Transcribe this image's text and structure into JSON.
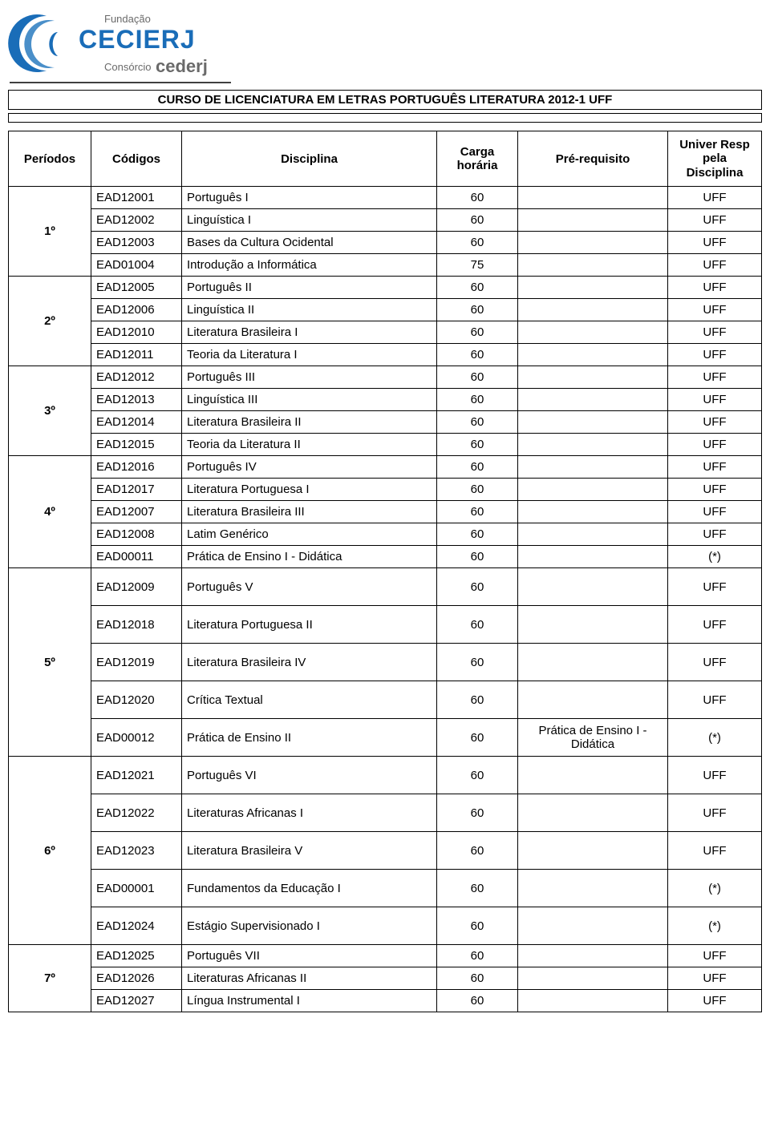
{
  "logo": {
    "fundacao": "Fundação",
    "cecierj": "CECIERJ",
    "consorcio": "Consórcio",
    "cederj": "cederj",
    "blue": "#1a6db8",
    "gray": "#6a6a6a"
  },
  "title": "CURSO DE LICENCIATURA EM LETRAS PORTUGUÊS LITERATURA  2012-1  UFF",
  "headers": {
    "periodos": "Períodos",
    "codigos": "Códigos",
    "disciplina": "Disciplina",
    "carga": "Carga horária",
    "prereq": "Pré-requisito",
    "univer": "Univer Resp pela Disciplina"
  },
  "periods": [
    {
      "label": "1º",
      "rows": [
        {
          "codigo": "EAD12001",
          "disciplina": "Português I",
          "carga": "60",
          "prereq": "",
          "univer": "UFF"
        },
        {
          "codigo": "EAD12002",
          "disciplina": "Linguística I",
          "carga": "60",
          "prereq": "",
          "univer": "UFF"
        },
        {
          "codigo": "EAD12003",
          "disciplina": "Bases da Cultura Ocidental",
          "carga": "60",
          "prereq": "",
          "univer": "UFF"
        },
        {
          "codigo": "EAD01004",
          "disciplina": "Introdução a Informática",
          "carga": "75",
          "prereq": "",
          "univer": "UFF"
        }
      ]
    },
    {
      "label": "2º",
      "rows": [
        {
          "codigo": "EAD12005",
          "disciplina": "Português II",
          "carga": "60",
          "prereq": "",
          "univer": "UFF"
        },
        {
          "codigo": "EAD12006",
          "disciplina": "Linguística II",
          "carga": "60",
          "prereq": "",
          "univer": "UFF"
        },
        {
          "codigo": "EAD12010",
          "disciplina": "Literatura Brasileira I",
          "carga": "60",
          "prereq": "",
          "univer": "UFF"
        },
        {
          "codigo": "EAD12011",
          "disciplina": "Teoria da Literatura I",
          "carga": "60",
          "prereq": "",
          "univer": "UFF"
        }
      ]
    },
    {
      "label": "3º",
      "rows": [
        {
          "codigo": "EAD12012",
          "disciplina": "Português III",
          "carga": "60",
          "prereq": "",
          "univer": "UFF"
        },
        {
          "codigo": "EAD12013",
          "disciplina": "Linguística III",
          "carga": "60",
          "prereq": "",
          "univer": "UFF"
        },
        {
          "codigo": "EAD12014",
          "disciplina": "Literatura Brasileira II",
          "carga": "60",
          "prereq": "",
          "univer": "UFF"
        },
        {
          "codigo": "EAD12015",
          "disciplina": "Teoria da Literatura II",
          "carga": "60",
          "prereq": "",
          "univer": "UFF"
        }
      ]
    },
    {
      "label": "4º",
      "rows": [
        {
          "codigo": "EAD12016",
          "disciplina": "Português IV",
          "carga": "60",
          "prereq": "",
          "univer": "UFF"
        },
        {
          "codigo": "EAD12017",
          "disciplina": "Literatura Portuguesa I",
          "carga": "60",
          "prereq": "",
          "univer": "UFF"
        },
        {
          "codigo": "EAD12007",
          "disciplina": "Literatura Brasileira III",
          "carga": "60",
          "prereq": "",
          "univer": "UFF"
        },
        {
          "codigo": "EAD12008",
          "disciplina": "Latim Genérico",
          "carga": "60",
          "prereq": "",
          "univer": "UFF"
        },
        {
          "codigo": "EAD00011",
          "disciplina": "Prática de Ensino I - Didática",
          "carga": "60",
          "prereq": "",
          "univer": "(*)"
        }
      ]
    },
    {
      "label": "5º",
      "tall": true,
      "rows": [
        {
          "codigo": "EAD12009",
          "disciplina": "Português V",
          "carga": "60",
          "prereq": "",
          "univer": "UFF"
        },
        {
          "codigo": "EAD12018",
          "disciplina": "Literatura Portuguesa II",
          "carga": "60",
          "prereq": "",
          "univer": "UFF"
        },
        {
          "codigo": "EAD12019",
          "disciplina": "Literatura Brasileira IV",
          "carga": "60",
          "prereq": "",
          "univer": "UFF"
        },
        {
          "codigo": "EAD12020",
          "disciplina": "Crítica Textual",
          "carga": "60",
          "prereq": "",
          "univer": "UFF"
        },
        {
          "codigo": "EAD00012",
          "disciplina": "Prática de Ensino II",
          "carga": "60",
          "prereq": "Prática de Ensino I - Didática",
          "univer": "(*)"
        }
      ]
    },
    {
      "label": "6º",
      "tall": true,
      "rows": [
        {
          "codigo": "EAD12021",
          "disciplina": "Português VI",
          "carga": "60",
          "prereq": "",
          "univer": "UFF"
        },
        {
          "codigo": "EAD12022",
          "disciplina": "Literaturas Africanas I",
          "carga": "60",
          "prereq": "",
          "univer": "UFF"
        },
        {
          "codigo": "EAD12023",
          "disciplina": "Literatura Brasileira V",
          "carga": "60",
          "prereq": "",
          "univer": "UFF"
        },
        {
          "codigo": "EAD00001",
          "disciplina": "Fundamentos da Educação I",
          "carga": "60",
          "prereq": "",
          "univer": "(*)"
        },
        {
          "codigo": "EAD12024",
          "disciplina": "Estágio Supervisionado I",
          "carga": "60",
          "prereq": "",
          "univer": "(*)"
        }
      ]
    },
    {
      "label": "7º",
      "rows": [
        {
          "codigo": "EAD12025",
          "disciplina": "Português VII",
          "carga": "60",
          "prereq": "",
          "univer": "UFF"
        },
        {
          "codigo": "EAD12026",
          "disciplina": "Literaturas Africanas II",
          "carga": "60",
          "prereq": "",
          "univer": "UFF"
        },
        {
          "codigo": "EAD12027",
          "disciplina": "Língua Instrumental I",
          "carga": "60",
          "prereq": "",
          "univer": "UFF"
        }
      ]
    }
  ],
  "styling": {
    "border_color": "#000000",
    "background_color": "#ffffff",
    "text_color": "#000000",
    "header_fontsize": 15,
    "cell_fontsize": 15,
    "font_family": "Arial"
  }
}
